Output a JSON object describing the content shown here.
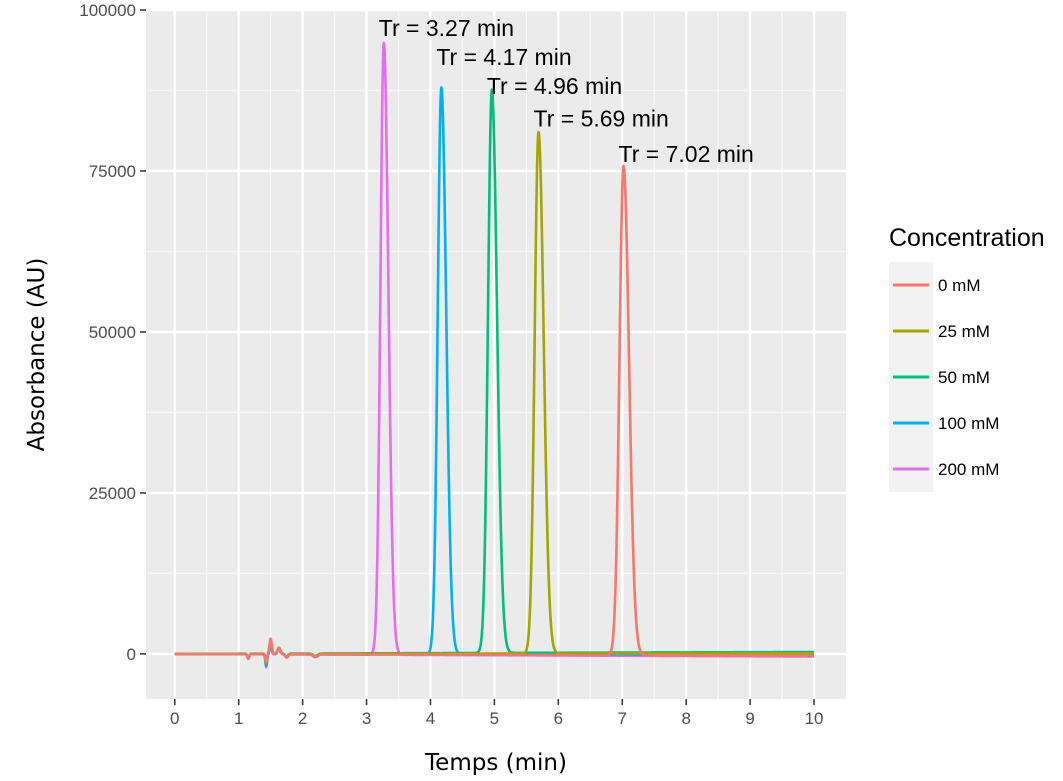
{
  "chart_data": {
    "type": "line",
    "xlabel": "Temps (min)",
    "ylabel": "Absorbance (AU)",
    "xlim": [
      -0.45,
      10.5
    ],
    "ylim": [
      -7000,
      100000
    ],
    "x_ticks": [
      0,
      1,
      2,
      3,
      4,
      5,
      6,
      7,
      8,
      9,
      10
    ],
    "y_ticks": [
      0,
      25000,
      50000,
      75000,
      100000
    ],
    "x_tick_labels": [
      "0",
      "1",
      "2",
      "3",
      "4",
      "5",
      "6",
      "7",
      "8",
      "9",
      "10"
    ],
    "y_tick_labels": [
      "0",
      "25000",
      "50000",
      "75000",
      "100000"
    ],
    "grid": true,
    "background": "#ebebeb",
    "legend": {
      "title": "Concentration",
      "position": "right"
    },
    "series": [
      {
        "name": "0 mM",
        "color": "#F8766D",
        "peak_time": 7.02,
        "peak_height": 76000,
        "width": 0.09,
        "baseline_end": -300
      },
      {
        "name": "25 mM",
        "color": "#A3A500",
        "peak_time": 5.69,
        "peak_height": 81000,
        "width": 0.085,
        "baseline_end": 100
      },
      {
        "name": "50 mM",
        "color": "#00BF7D",
        "peak_time": 4.96,
        "peak_height": 87500,
        "width": 0.085,
        "baseline_end": 300
      },
      {
        "name": "100 mM",
        "color": "#00B0F6",
        "peak_time": 4.17,
        "peak_height": 88000,
        "width": 0.08,
        "baseline_end": -100
      },
      {
        "name": "200 mM",
        "color": "#E76BF3",
        "peak_time": 3.27,
        "peak_height": 95000,
        "width": 0.075,
        "baseline_end": -400
      }
    ],
    "annotations": [
      {
        "text": "Tr = 3.27 min",
        "x": 3.27,
        "y": 95000
      },
      {
        "text": "Tr = 4.17 min",
        "x": 4.17,
        "y": 90500
      },
      {
        "text": "Tr = 4.96 min",
        "x": 4.96,
        "y": 86000
      },
      {
        "text": "Tr = 5.69 min",
        "x": 5.69,
        "y": 81000
      },
      {
        "text": "Tr = 7.02 min",
        "x": 7.02,
        "y": 75500
      }
    ]
  }
}
